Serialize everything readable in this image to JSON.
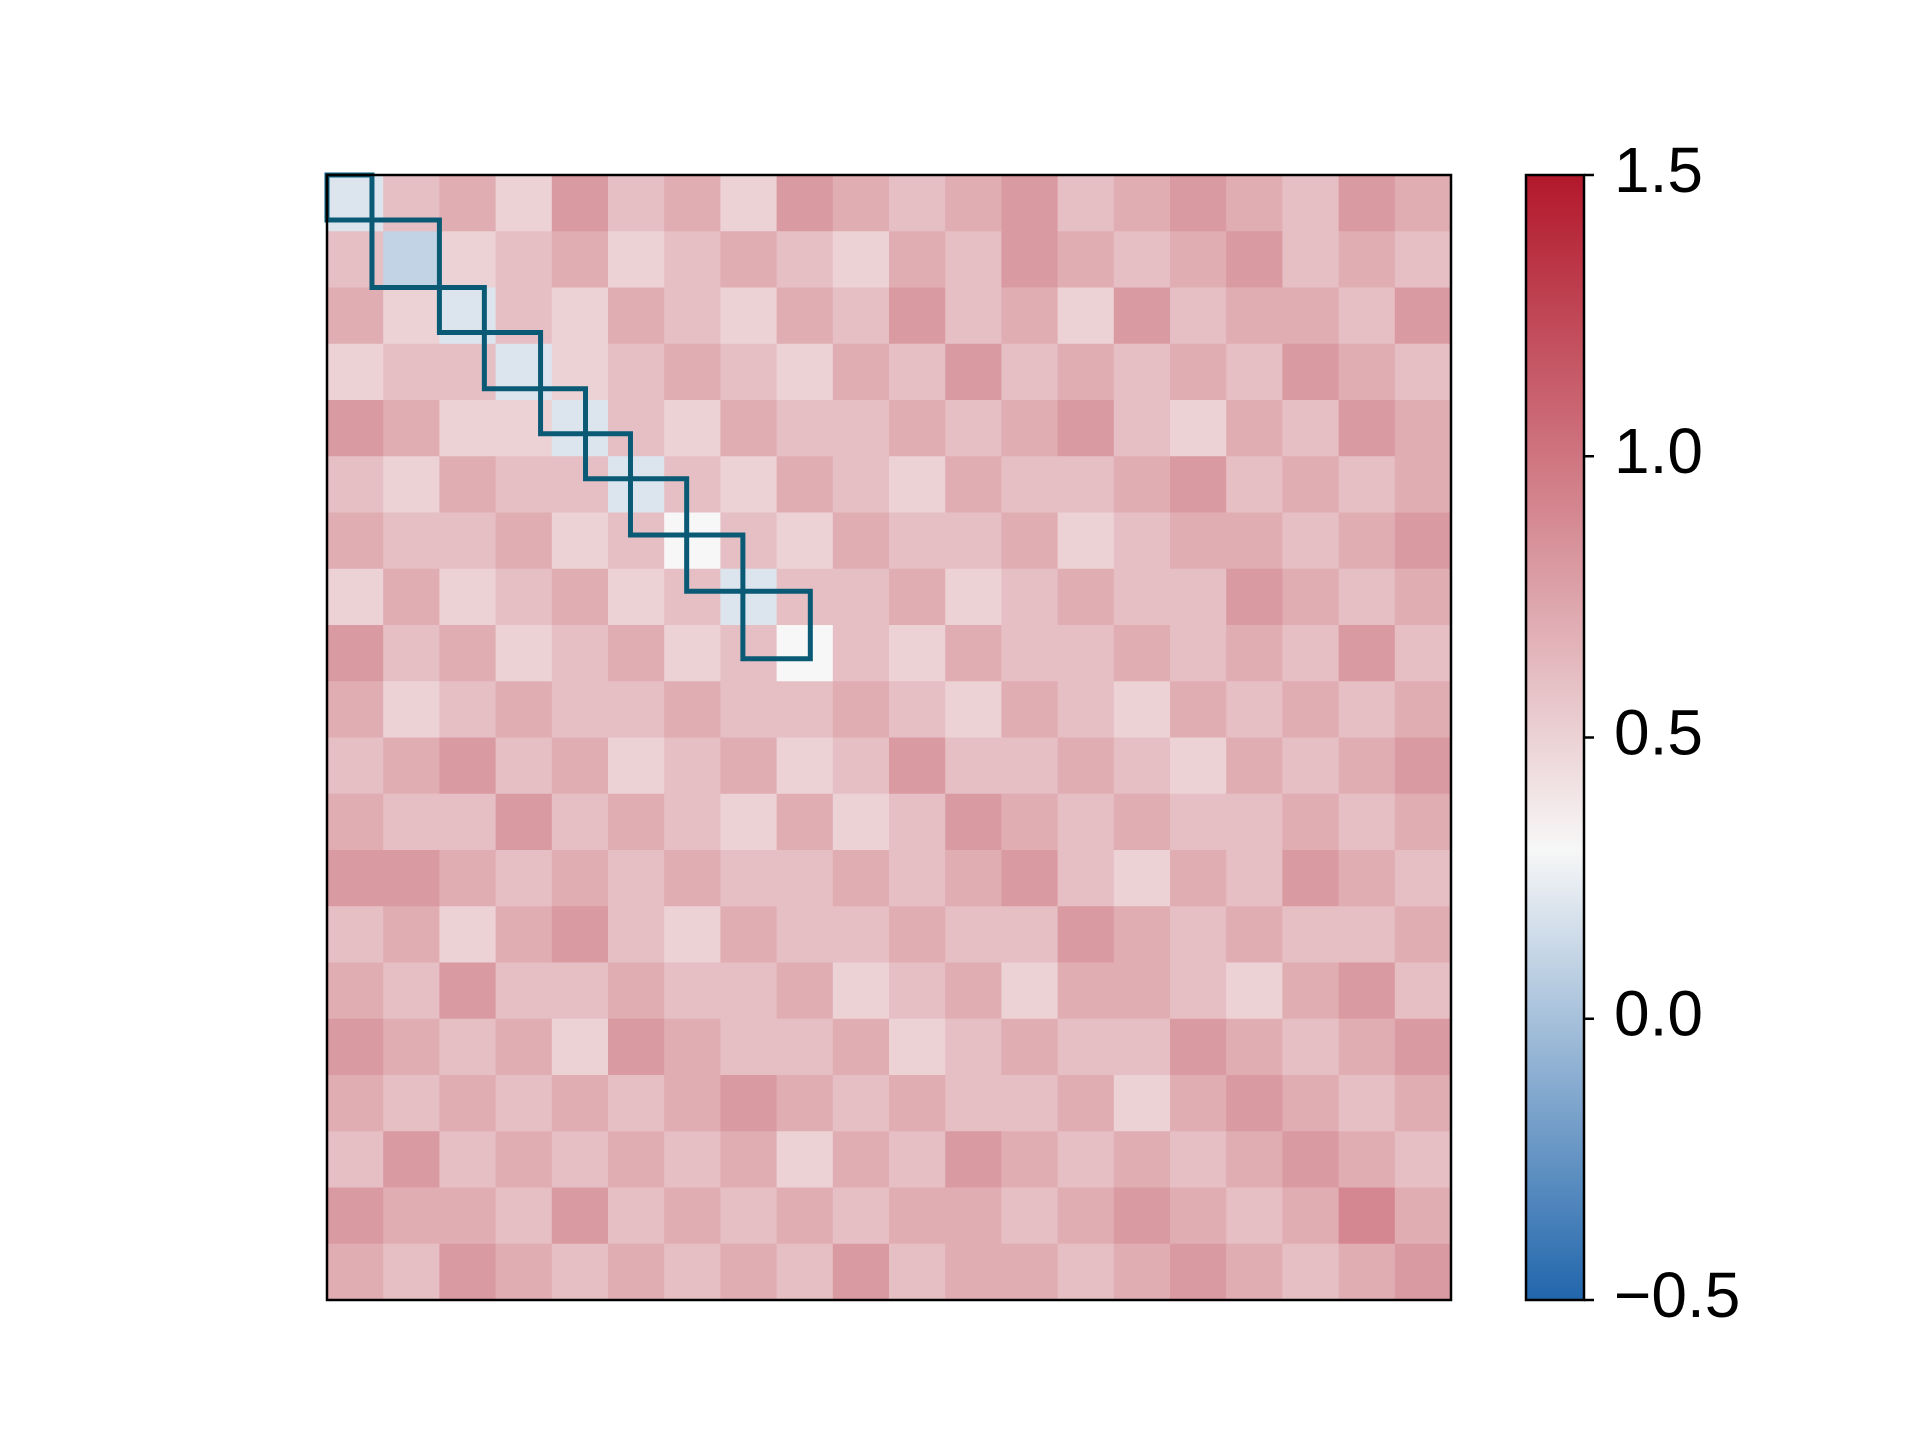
{
  "chart_data": {
    "type": "heatmap",
    "xlim": [
      0,
      100
    ],
    "ylim": [
      0,
      100
    ],
    "values": [
      [
        0.2,
        0.6,
        0.7,
        0.5,
        0.8,
        0.6,
        0.7,
        0.5,
        0.8,
        0.7,
        0.6,
        0.7,
        0.8,
        0.6,
        0.7,
        0.8,
        0.7,
        0.6,
        0.8,
        0.7
      ],
      [
        0.6,
        0.1,
        0.5,
        0.6,
        0.7,
        0.5,
        0.6,
        0.7,
        0.6,
        0.5,
        0.7,
        0.6,
        0.8,
        0.7,
        0.6,
        0.7,
        0.8,
        0.6,
        0.7,
        0.6
      ],
      [
        0.7,
        0.5,
        0.2,
        0.6,
        0.5,
        0.7,
        0.6,
        0.5,
        0.7,
        0.6,
        0.8,
        0.6,
        0.7,
        0.5,
        0.8,
        0.6,
        0.7,
        0.7,
        0.6,
        0.8
      ],
      [
        0.5,
        0.6,
        0.6,
        0.2,
        0.5,
        0.6,
        0.7,
        0.6,
        0.5,
        0.7,
        0.6,
        0.8,
        0.6,
        0.7,
        0.6,
        0.7,
        0.6,
        0.8,
        0.7,
        0.6
      ],
      [
        0.8,
        0.7,
        0.5,
        0.5,
        0.2,
        0.6,
        0.5,
        0.7,
        0.6,
        0.6,
        0.7,
        0.6,
        0.7,
        0.8,
        0.6,
        0.5,
        0.7,
        0.6,
        0.8,
        0.7
      ],
      [
        0.6,
        0.5,
        0.7,
        0.6,
        0.6,
        0.2,
        0.6,
        0.5,
        0.7,
        0.6,
        0.5,
        0.7,
        0.6,
        0.6,
        0.7,
        0.8,
        0.6,
        0.7,
        0.6,
        0.7
      ],
      [
        0.7,
        0.6,
        0.6,
        0.7,
        0.5,
        0.6,
        0.3,
        0.6,
        0.5,
        0.7,
        0.6,
        0.6,
        0.7,
        0.5,
        0.6,
        0.7,
        0.7,
        0.6,
        0.7,
        0.8
      ],
      [
        0.5,
        0.7,
        0.5,
        0.6,
        0.7,
        0.5,
        0.6,
        0.2,
        0.6,
        0.6,
        0.7,
        0.5,
        0.6,
        0.7,
        0.6,
        0.6,
        0.8,
        0.7,
        0.6,
        0.7
      ],
      [
        0.8,
        0.6,
        0.7,
        0.5,
        0.6,
        0.7,
        0.5,
        0.6,
        0.3,
        0.6,
        0.5,
        0.7,
        0.6,
        0.6,
        0.7,
        0.6,
        0.7,
        0.6,
        0.8,
        0.6
      ],
      [
        0.7,
        0.5,
        0.6,
        0.7,
        0.6,
        0.6,
        0.7,
        0.6,
        0.6,
        0.7,
        0.6,
        0.5,
        0.7,
        0.6,
        0.5,
        0.7,
        0.6,
        0.7,
        0.6,
        0.7
      ],
      [
        0.6,
        0.7,
        0.8,
        0.6,
        0.7,
        0.5,
        0.6,
        0.7,
        0.5,
        0.6,
        0.8,
        0.6,
        0.6,
        0.7,
        0.6,
        0.5,
        0.7,
        0.6,
        0.7,
        0.8
      ],
      [
        0.7,
        0.6,
        0.6,
        0.8,
        0.6,
        0.7,
        0.6,
        0.5,
        0.7,
        0.5,
        0.6,
        0.8,
        0.7,
        0.6,
        0.7,
        0.6,
        0.6,
        0.7,
        0.6,
        0.7
      ],
      [
        0.8,
        0.8,
        0.7,
        0.6,
        0.7,
        0.6,
        0.7,
        0.6,
        0.6,
        0.7,
        0.6,
        0.7,
        0.8,
        0.6,
        0.5,
        0.7,
        0.6,
        0.8,
        0.7,
        0.6
      ],
      [
        0.6,
        0.7,
        0.5,
        0.7,
        0.8,
        0.6,
        0.5,
        0.7,
        0.6,
        0.6,
        0.7,
        0.6,
        0.6,
        0.8,
        0.7,
        0.6,
        0.7,
        0.6,
        0.6,
        0.7
      ],
      [
        0.7,
        0.6,
        0.8,
        0.6,
        0.6,
        0.7,
        0.6,
        0.6,
        0.7,
        0.5,
        0.6,
        0.7,
        0.5,
        0.7,
        0.7,
        0.6,
        0.5,
        0.7,
        0.8,
        0.6
      ],
      [
        0.8,
        0.7,
        0.6,
        0.7,
        0.5,
        0.8,
        0.7,
        0.6,
        0.6,
        0.7,
        0.5,
        0.6,
        0.7,
        0.6,
        0.6,
        0.8,
        0.7,
        0.6,
        0.7,
        0.8
      ],
      [
        0.7,
        0.6,
        0.7,
        0.6,
        0.7,
        0.6,
        0.7,
        0.8,
        0.7,
        0.6,
        0.7,
        0.6,
        0.6,
        0.7,
        0.5,
        0.7,
        0.8,
        0.7,
        0.6,
        0.7
      ],
      [
        0.6,
        0.8,
        0.6,
        0.7,
        0.6,
        0.7,
        0.6,
        0.7,
        0.5,
        0.7,
        0.6,
        0.8,
        0.7,
        0.6,
        0.7,
        0.6,
        0.7,
        0.8,
        0.7,
        0.6
      ],
      [
        0.8,
        0.7,
        0.7,
        0.6,
        0.8,
        0.6,
        0.7,
        0.6,
        0.7,
        0.6,
        0.7,
        0.7,
        0.6,
        0.7,
        0.8,
        0.7,
        0.6,
        0.7,
        0.9,
        0.7
      ],
      [
        0.7,
        0.6,
        0.8,
        0.7,
        0.6,
        0.7,
        0.6,
        0.7,
        0.6,
        0.8,
        0.6,
        0.7,
        0.7,
        0.6,
        0.7,
        0.8,
        0.7,
        0.6,
        0.7,
        0.8
      ]
    ],
    "blocks": [
      [
        0,
        4
      ],
      [
        4,
        10
      ],
      [
        10,
        14
      ],
      [
        14,
        19
      ],
      [
        19,
        23
      ],
      [
        23,
        27
      ],
      [
        27,
        32
      ],
      [
        32,
        37
      ],
      [
        37,
        43
      ]
    ],
    "block_color": "#0a5a75",
    "colormap": [
      {
        "value": -0.5,
        "color": "#2166ac"
      },
      {
        "value": 0.3,
        "color": "#f7f7f7"
      },
      {
        "value": 1.5,
        "color": "#b2182b"
      }
    ],
    "clim": [
      -0.5,
      1.5
    ],
    "cticks": [
      {
        "value": -0.5,
        "label": "−0.5"
      },
      {
        "value": 0.0,
        "label": "0.0"
      },
      {
        "value": 0.5,
        "label": "0.5"
      },
      {
        "value": 1.0,
        "label": "1.0"
      },
      {
        "value": 1.5,
        "label": "1.5"
      }
    ]
  }
}
